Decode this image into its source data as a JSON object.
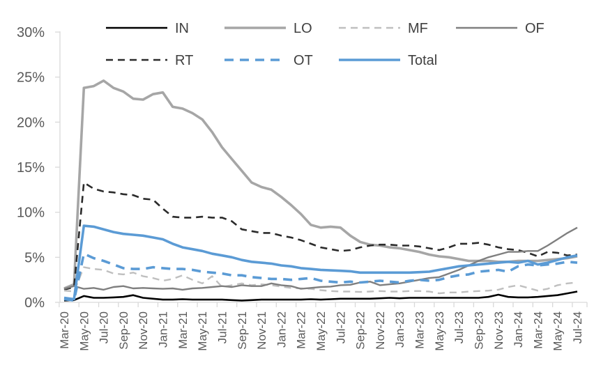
{
  "chart_data": {
    "type": "line",
    "title": "",
    "xlabel": "",
    "ylabel": "",
    "ylim": [
      0,
      30
    ],
    "ytick_step": 5,
    "ytick_labels": [
      "0%",
      "5%",
      "10%",
      "15%",
      "20%",
      "25%",
      "30%"
    ],
    "grid": false,
    "legend_position": "top",
    "axis_color": "#d9d9d9",
    "label_color": "#595959",
    "legend_text_color": "#404040",
    "x": [
      "Mar-20",
      "Apr-20",
      "May-20",
      "Jun-20",
      "Jul-20",
      "Aug-20",
      "Sep-20",
      "Oct-20",
      "Nov-20",
      "Dec-20",
      "Jan-21",
      "Feb-21",
      "Mar-21",
      "Apr-21",
      "May-21",
      "Jun-21",
      "Jul-21",
      "Aug-21",
      "Sep-21",
      "Oct-21",
      "Nov-21",
      "Dec-21",
      "Jan-22",
      "Feb-22",
      "Mar-22",
      "Apr-22",
      "May-22",
      "Jun-22",
      "Jul-22",
      "Aug-22",
      "Sep-22",
      "Oct-22",
      "Nov-22",
      "Dec-22",
      "Jan-23",
      "Feb-23",
      "Mar-23",
      "Apr-23",
      "May-23",
      "Jun-23",
      "Jul-23",
      "Aug-23",
      "Sep-23",
      "Oct-23",
      "Nov-23",
      "Dec-23",
      "Jan-24",
      "Feb-24",
      "Mar-24",
      "Apr-24",
      "May-24",
      "Jun-24",
      "Jul-24"
    ],
    "xlabel_interval": 2,
    "series": [
      {
        "name": "IN",
        "color": "#000000",
        "style": "solid",
        "width": 2.6,
        "values": [
          0.2,
          0.25,
          0.7,
          0.5,
          0.5,
          0.55,
          0.6,
          0.8,
          0.5,
          0.4,
          0.3,
          0.3,
          0.35,
          0.3,
          0.3,
          0.3,
          0.3,
          0.25,
          0.2,
          0.25,
          0.3,
          0.3,
          0.3,
          0.3,
          0.3,
          0.35,
          0.3,
          0.35,
          0.4,
          0.4,
          0.4,
          0.4,
          0.45,
          0.5,
          0.45,
          0.5,
          0.5,
          0.5,
          0.5,
          0.5,
          0.5,
          0.5,
          0.5,
          0.6,
          0.85,
          0.6,
          0.55,
          0.55,
          0.6,
          0.7,
          0.8,
          1.0,
          1.2
        ]
      },
      {
        "name": "LO",
        "color": "#a6a6a6",
        "style": "solid",
        "width": 3.6,
        "values": [
          1.55,
          2.0,
          23.8,
          24.0,
          24.6,
          23.8,
          23.4,
          22.6,
          22.5,
          23.1,
          23.3,
          21.7,
          21.5,
          21.0,
          20.3,
          18.9,
          17.2,
          15.9,
          14.6,
          13.3,
          12.8,
          12.5,
          11.7,
          10.8,
          9.8,
          8.6,
          8.3,
          8.4,
          8.3,
          7.4,
          6.7,
          6.4,
          6.3,
          6.1,
          6.0,
          5.8,
          5.6,
          5.3,
          5.1,
          5.0,
          4.8,
          4.6,
          4.6,
          4.6,
          4.5,
          4.5,
          4.6,
          4.6,
          4.6,
          4.7,
          4.8,
          4.9,
          5.1
        ]
      },
      {
        "name": "MF",
        "color": "#bfbfbf",
        "style": "dashed",
        "width": 2.4,
        "values": [
          1.3,
          1.2,
          3.9,
          3.7,
          3.6,
          3.2,
          3.1,
          3.3,
          2.9,
          2.7,
          2.4,
          2.6,
          3.0,
          2.5,
          2.1,
          2.9,
          1.7,
          1.9,
          2.1,
          1.9,
          2.0,
          1.9,
          1.75,
          1.6,
          1.55,
          1.5,
          1.35,
          1.25,
          1.2,
          1.2,
          1.15,
          1.2,
          1.25,
          1.2,
          1.2,
          1.25,
          1.25,
          1.2,
          1.0,
          1.1,
          1.1,
          1.2,
          1.25,
          1.3,
          1.4,
          1.7,
          1.9,
          1.6,
          1.3,
          1.5,
          1.9,
          2.1,
          2.2
        ]
      },
      {
        "name": "OF",
        "color": "#7f7f7f",
        "style": "solid",
        "width": 2.4,
        "values": [
          1.5,
          1.8,
          1.5,
          1.6,
          1.4,
          1.7,
          1.8,
          1.55,
          1.6,
          1.55,
          1.5,
          1.55,
          1.4,
          1.55,
          1.6,
          1.7,
          1.8,
          1.7,
          1.9,
          1.8,
          1.8,
          2.1,
          1.9,
          1.8,
          1.5,
          1.6,
          1.7,
          1.75,
          1.9,
          1.95,
          2.2,
          2.3,
          1.9,
          2.0,
          2.1,
          2.3,
          2.5,
          2.7,
          2.8,
          3.2,
          3.6,
          4.1,
          4.6,
          5.0,
          5.3,
          5.6,
          5.6,
          5.7,
          5.7,
          6.3,
          7.0,
          7.7,
          8.3
        ]
      },
      {
        "name": "RT",
        "color": "#2b2b2b",
        "style": "dashed",
        "width": 2.6,
        "values": [
          1.4,
          1.7,
          13.3,
          12.6,
          12.3,
          12.2,
          12.0,
          11.9,
          11.5,
          11.4,
          10.4,
          9.5,
          9.4,
          9.4,
          9.5,
          9.4,
          9.4,
          9.0,
          8.1,
          7.9,
          7.7,
          7.7,
          7.4,
          7.2,
          6.9,
          6.5,
          6.1,
          5.9,
          5.7,
          5.8,
          6.1,
          6.3,
          6.4,
          6.4,
          6.3,
          6.3,
          6.2,
          6.0,
          5.8,
          6.1,
          6.5,
          6.5,
          6.6,
          6.4,
          6.1,
          5.9,
          5.8,
          5.5,
          5.1,
          5.6,
          5.5,
          5.2,
          5.3
        ]
      },
      {
        "name": "OT",
        "color": "#5b9bd5",
        "style": "dashed",
        "width": 3.6,
        "values": [
          0.35,
          0.2,
          5.4,
          4.9,
          4.6,
          4.2,
          3.8,
          3.7,
          3.7,
          3.9,
          3.8,
          3.7,
          3.7,
          3.6,
          3.4,
          3.3,
          3.2,
          3.0,
          3.0,
          2.8,
          2.7,
          2.6,
          2.6,
          2.5,
          2.6,
          2.7,
          2.4,
          2.3,
          2.2,
          2.3,
          2.2,
          2.3,
          2.4,
          2.3,
          2.2,
          2.4,
          2.5,
          2.4,
          2.5,
          2.8,
          3.0,
          3.1,
          3.4,
          3.5,
          3.6,
          3.4,
          4.0,
          4.2,
          4.1,
          4.2,
          4.3,
          4.5,
          4.4
        ]
      },
      {
        "name": "Total",
        "color": "#5b9bd5",
        "style": "solid",
        "width": 3.6,
        "values": [
          0.5,
          0.35,
          8.5,
          8.4,
          8.1,
          7.8,
          7.6,
          7.5,
          7.4,
          7.2,
          7.0,
          6.5,
          6.1,
          5.9,
          5.7,
          5.4,
          5.2,
          5.0,
          4.7,
          4.5,
          4.4,
          4.3,
          4.1,
          4.0,
          3.8,
          3.7,
          3.6,
          3.55,
          3.5,
          3.45,
          3.3,
          3.3,
          3.3,
          3.3,
          3.3,
          3.3,
          3.35,
          3.4,
          3.6,
          3.8,
          4.0,
          4.1,
          4.2,
          4.3,
          4.4,
          4.5,
          4.4,
          4.6,
          4.2,
          4.4,
          4.7,
          5.0,
          5.2
        ]
      }
    ]
  }
}
